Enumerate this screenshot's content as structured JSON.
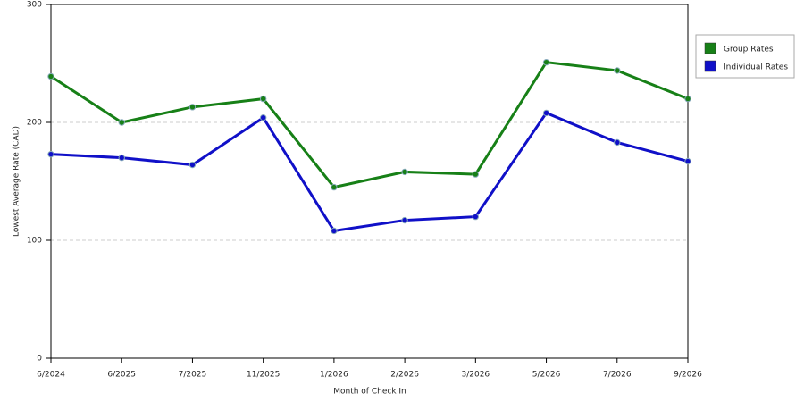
{
  "chart_data": {
    "type": "line",
    "x_label": "Month of Check In",
    "y_label": "Lowest Average Rate (CAD)",
    "categories": [
      "6/2024",
      "6/2025",
      "7/2025",
      "11/2025",
      "1/2026",
      "2/2026",
      "3/2026",
      "5/2026",
      "7/2026",
      "9/2026"
    ],
    "series": [
      {
        "name": "Group Rates",
        "color": "#178017",
        "values": [
          239,
          200,
          213,
          220,
          145,
          158,
          156,
          251,
          244,
          220
        ]
      },
      {
        "name": "Individual Rates",
        "color": "#1010c8",
        "values": [
          173,
          170,
          164,
          204,
          108,
          117,
          120,
          208,
          183,
          167
        ]
      }
    ],
    "ylim": [
      0,
      300
    ],
    "yticks": [
      0,
      100,
      200,
      300
    ],
    "grid": true,
    "legend": "right"
  }
}
